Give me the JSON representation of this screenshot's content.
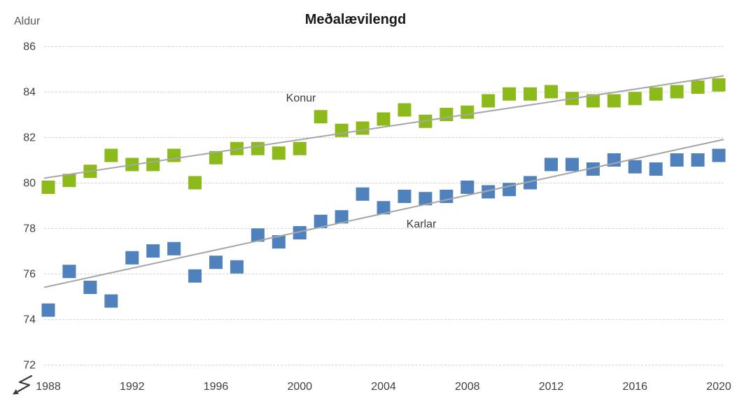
{
  "chart_data": {
    "type": "scatter",
    "title": "Meðalævilengd",
    "y_axis_label": "Aldur",
    "x_label": "",
    "x": [
      1988,
      1989,
      1990,
      1991,
      1992,
      1993,
      1994,
      1995,
      1996,
      1997,
      1998,
      1999,
      2000,
      2001,
      2002,
      2003,
      2004,
      2005,
      2006,
      2007,
      2008,
      2009,
      2010,
      2011,
      2012,
      2013,
      2014,
      2015,
      2016,
      2017,
      2018,
      2019,
      2020
    ],
    "series": [
      {
        "name": "Konur",
        "color": "#8CBA1A",
        "marker": "square",
        "values": [
          79.8,
          80.1,
          80.5,
          81.2,
          80.8,
          80.8,
          81.2,
          80.0,
          81.1,
          81.5,
          81.5,
          81.3,
          81.5,
          82.9,
          82.3,
          82.4,
          82.8,
          83.2,
          82.7,
          83.0,
          83.1,
          83.6,
          83.9,
          83.9,
          84.0,
          83.7,
          83.6,
          83.6,
          83.7,
          83.9,
          84.0,
          84.2,
          84.3
        ],
        "trend": {
          "left_value": 80.2,
          "right_value": 84.7
        }
      },
      {
        "name": "Karlar",
        "color": "#4F81BD",
        "marker": "square",
        "values": [
          74.4,
          76.1,
          75.4,
          74.8,
          76.7,
          77.0,
          77.1,
          75.9,
          76.5,
          76.3,
          77.7,
          77.4,
          77.8,
          78.3,
          78.5,
          79.5,
          78.9,
          79.4,
          79.3,
          79.4,
          79.8,
          79.6,
          79.7,
          80.0,
          80.8,
          80.8,
          80.6,
          81.0,
          80.7,
          80.6,
          81.0,
          81.0,
          81.2
        ],
        "trend": {
          "left_value": 75.4,
          "right_value": 81.9
        }
      }
    ],
    "x_ticks": [
      1988,
      1992,
      1996,
      2000,
      2004,
      2008,
      2012,
      2016,
      2020
    ],
    "y_ticks": [
      86,
      84,
      82,
      80,
      78,
      76,
      74,
      72
    ],
    "xlim": [
      1988,
      2020
    ],
    "ylim": [
      72,
      86
    ],
    "grid": "horizontal-dashed",
    "legend": "inline-labels",
    "axis_break_bottom_left": true,
    "colors": {
      "gridline": "#D2D2D2",
      "trendline": "#A6A6A6",
      "axis_text": "#404040",
      "axis_title_text": "#595959",
      "title_text": "#1A1A1A",
      "background": "#FFFFFF"
    }
  }
}
